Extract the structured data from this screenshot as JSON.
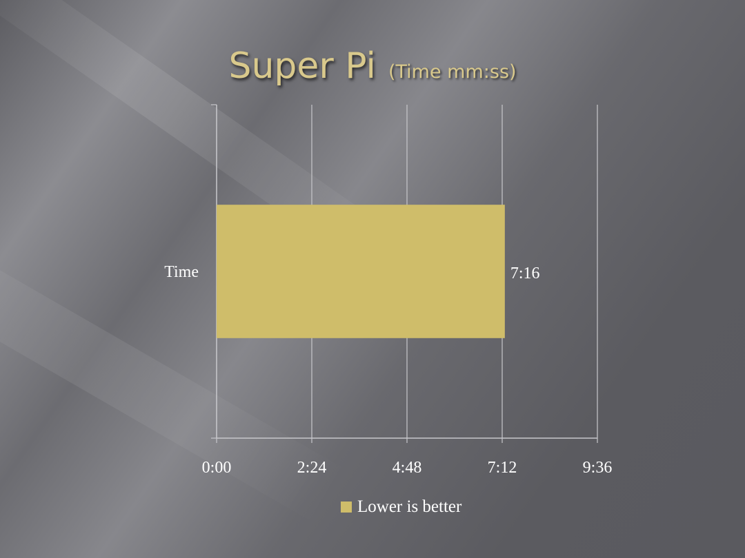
{
  "slide": {
    "title": "Super Pi",
    "subtitle": "(Time mm:ss)"
  },
  "colors": {
    "bar": "#cfbd6a",
    "title": "#d9c98c",
    "gridline": "#c8c8cc",
    "text": "#ffffff"
  },
  "chart_data": {
    "type": "bar",
    "orientation": "horizontal",
    "categories": [
      "Time"
    ],
    "series": [
      {
        "name": "Lower is better",
        "values": [
          436
        ],
        "data_labels": [
          "7:16"
        ]
      }
    ],
    "value_unit": "seconds",
    "xlim": [
      0,
      576
    ],
    "x_ticks": [
      0,
      144,
      288,
      432,
      576
    ],
    "x_tick_labels": [
      "0:00",
      "2:24",
      "4:48",
      "7:12",
      "9:36"
    ],
    "grid": true,
    "legend_position": "bottom"
  }
}
